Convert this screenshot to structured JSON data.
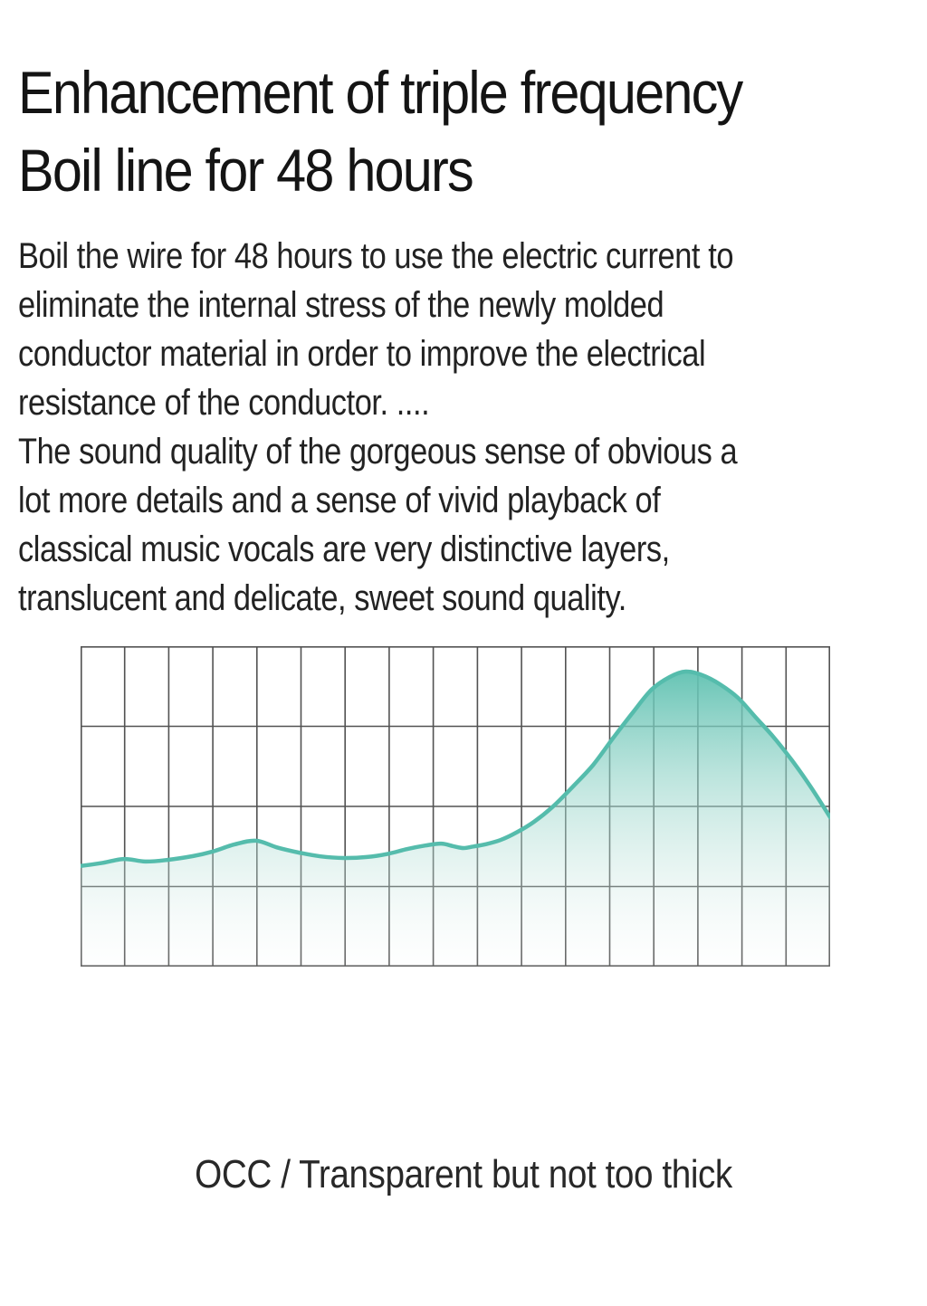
{
  "page": {
    "title_lines": [
      "Enhancement of triple frequency",
      "Boil line for 48 hours"
    ],
    "paragraph1_lines": [
      "Boil the wire for 48 hours to use the electric current to",
      "eliminate the internal stress of the newly molded",
      "conductor material in order to improve the electrical",
      "resistance of the conductor. ...."
    ],
    "paragraph2_lines": [
      "The sound quality of the gorgeous sense of obvious a",
      "lot more details and a sense of vivid playback of",
      "classical music vocals are very distinctive layers,",
      "translucent and delicate, sweet sound quality."
    ],
    "caption": "OCC / Transparent but not too thick",
    "text_color": "#1e1e1e",
    "background_color": "#ffffff"
  },
  "chart_data": {
    "type": "area",
    "title": "",
    "xlabel": "",
    "ylabel": "",
    "legend": null,
    "grid": {
      "columns": 17,
      "rows": 4,
      "visible": true
    },
    "x_range": [
      0,
      1
    ],
    "y_range": [
      0,
      1
    ],
    "curve_color": "#55bcac",
    "grid_color": "#525252",
    "fill_gradient": [
      {
        "offset": "0%",
        "color": "#5fc1b1",
        "opacity": 0.95
      },
      {
        "offset": "35%",
        "color": "#8ed2c6",
        "opacity": 0.6
      },
      {
        "offset": "70%",
        "color": "#c4e5de",
        "opacity": 0.34
      },
      {
        "offset": "100%",
        "color": "#f4f9f8",
        "opacity": 0.12
      }
    ],
    "points": [
      [
        0.0,
        0.314
      ],
      [
        0.03,
        0.324
      ],
      [
        0.058,
        0.336
      ],
      [
        0.086,
        0.328
      ],
      [
        0.116,
        0.333
      ],
      [
        0.15,
        0.345
      ],
      [
        0.176,
        0.359
      ],
      [
        0.205,
        0.381
      ],
      [
        0.234,
        0.393
      ],
      [
        0.262,
        0.372
      ],
      [
        0.291,
        0.356
      ],
      [
        0.32,
        0.344
      ],
      [
        0.351,
        0.339
      ],
      [
        0.382,
        0.342
      ],
      [
        0.41,
        0.352
      ],
      [
        0.436,
        0.367
      ],
      [
        0.46,
        0.378
      ],
      [
        0.481,
        0.384
      ],
      [
        0.497,
        0.376
      ],
      [
        0.511,
        0.37
      ],
      [
        0.524,
        0.375
      ],
      [
        0.539,
        0.381
      ],
      [
        0.56,
        0.395
      ],
      [
        0.581,
        0.418
      ],
      [
        0.605,
        0.452
      ],
      [
        0.629,
        0.497
      ],
      [
        0.656,
        0.56
      ],
      [
        0.684,
        0.63
      ],
      [
        0.711,
        0.715
      ],
      [
        0.738,
        0.797
      ],
      [
        0.762,
        0.865
      ],
      [
        0.786,
        0.904
      ],
      [
        0.807,
        0.921
      ],
      [
        0.829,
        0.91
      ],
      [
        0.853,
        0.881
      ],
      [
        0.877,
        0.839
      ],
      [
        0.901,
        0.777
      ],
      [
        0.925,
        0.715
      ],
      [
        0.949,
        0.644
      ],
      [
        0.973,
        0.565
      ],
      [
        1.0,
        0.466
      ]
    ]
  }
}
